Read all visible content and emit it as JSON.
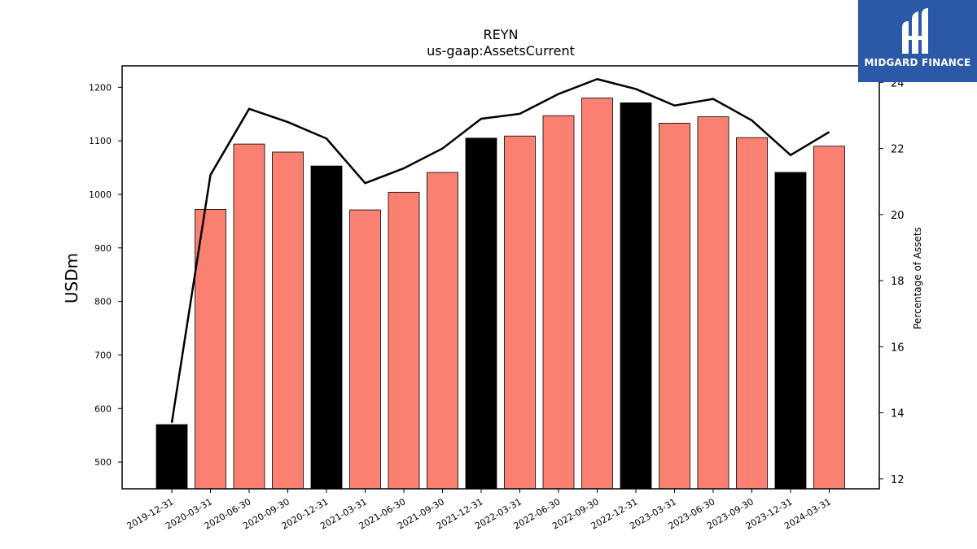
{
  "chart_data": {
    "type": "bar+line",
    "title": "REYN",
    "subtitle": "us-gaap:AssetsCurrent",
    "ylabel": "USDm",
    "y2label": "Percentage of Assets",
    "ylim": [
      450,
      1240
    ],
    "y2lim": [
      11.7,
      24.5
    ],
    "yticks": [
      "500",
      "600",
      "700",
      "800",
      "900",
      "1000",
      "1100",
      "1200"
    ],
    "y2ticks": [
      "12",
      "14",
      "16",
      "18",
      "20",
      "22",
      "24"
    ],
    "categories": [
      "2019-12-31",
      "2020-03-31",
      "2020-06-30",
      "2020-09-30",
      "2020-12-31",
      "2021-03-31",
      "2021-06-30",
      "2021-09-30",
      "2021-12-31",
      "2022-03-31",
      "2022-06-30",
      "2022-09-30",
      "2022-12-31",
      "2023-03-31",
      "2023-06-30",
      "2023-09-30",
      "2023-12-31",
      "2024-03-31"
    ],
    "values": [
      570,
      972,
      1094,
      1079,
      1053,
      971,
      1004,
      1041,
      1105,
      1109,
      1147,
      1180,
      1171,
      1133,
      1145,
      1106,
      1041,
      1090
    ],
    "line_values": [
      13.7,
      21.2,
      23.2,
      22.8,
      22.3,
      20.95,
      21.4,
      22.0,
      22.9,
      23.05,
      23.65,
      24.1,
      23.8,
      23.3,
      23.5,
      22.85,
      21.8,
      22.5
    ],
    "bar_colors": [
      "#000000",
      "#fa8072",
      "#fa8072",
      "#fa8072",
      "#000000",
      "#fa8072",
      "#fa8072",
      "#fa8072",
      "#000000",
      "#fa8072",
      "#fa8072",
      "#fa8072",
      "#000000",
      "#fa8072",
      "#fa8072",
      "#fa8072",
      "#000000",
      "#fa8072"
    ],
    "line_color": "#000000",
    "grid": false
  },
  "logo": {
    "text": "MIDGARD FINANCE",
    "icon": "midgard-logo-icon",
    "color": "#2b59a8"
  }
}
